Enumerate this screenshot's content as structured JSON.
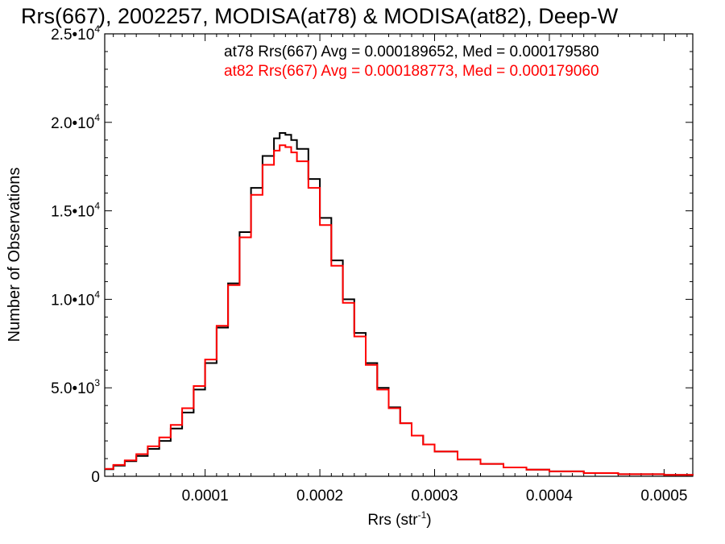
{
  "chart_data": {
    "type": "line",
    "title": "Rrs(667), 2002257, MODISA(at78) & MODISA(at82), Deep-W",
    "xlabel": "Rrs (str",
    "xlabel_sup": "-1",
    "xlabel_close": ")",
    "ylabel": "Number of Observations",
    "xlim": [
      1.25e-05,
      0.000525
    ],
    "ylim": [
      0,
      25000
    ],
    "grid": false,
    "x_ticks": [
      {
        "value": 0.0001,
        "label": "0.0001"
      },
      {
        "value": 0.0002,
        "label": "0.0002"
      },
      {
        "value": 0.0003,
        "label": "0.0003"
      },
      {
        "value": 0.0004,
        "label": "0.0004"
      },
      {
        "value": 0.0005,
        "label": "0.0005"
      }
    ],
    "y_ticks": [
      {
        "value": 0,
        "mant": "0",
        "exp": ""
      },
      {
        "value": 5000,
        "mant": "5.0•10",
        "exp": "3"
      },
      {
        "value": 10000,
        "mant": "1.0•10",
        "exp": "4"
      },
      {
        "value": 15000,
        "mant": "1.5•10",
        "exp": "4"
      },
      {
        "value": 20000,
        "mant": "2.0•10",
        "exp": "4"
      },
      {
        "value": 25000,
        "mant": "2.5•10",
        "exp": "4"
      }
    ],
    "annotations": [
      {
        "text": "at78 Rrs(667) Avg = 0.000189652, Med = 0.000179580",
        "color": "#000000"
      },
      {
        "text": "at82 Rrs(667) Avg = 0.000188773, Med = 0.000179060",
        "color": "#ff0000"
      }
    ],
    "series": [
      {
        "color": "#000000",
        "x": [
          1.25e-05,
          2e-05,
          3e-05,
          4e-05,
          5e-05,
          6e-05,
          7e-05,
          8e-05,
          9e-05,
          0.0001,
          0.00011,
          0.00012,
          0.00013,
          0.00014,
          0.00015,
          0.00016,
          0.000165,
          0.00017,
          0.000175,
          0.00018,
          0.00019,
          0.0002,
          0.00021,
          0.00022,
          0.00023,
          0.00024,
          0.00025,
          0.00026,
          0.00027,
          0.00028,
          0.00029,
          0.0003,
          0.00032,
          0.00034,
          0.00036,
          0.00038,
          0.0004,
          0.00043,
          0.00046,
          0.0005,
          0.000525
        ],
        "y": [
          400,
          600,
          850,
          1150,
          1550,
          2000,
          2700,
          3600,
          4900,
          6400,
          8400,
          10900,
          13800,
          16300,
          18100,
          19100,
          19400,
          19300,
          19000,
          18500,
          16800,
          14600,
          12200,
          10000,
          8100,
          6400,
          5000,
          3900,
          3000,
          2300,
          1800,
          1400,
          950,
          700,
          500,
          380,
          280,
          180,
          120,
          80,
          60
        ]
      },
      {
        "color": "#ff0000",
        "x": [
          1.25e-05,
          2e-05,
          3e-05,
          4e-05,
          5e-05,
          6e-05,
          7e-05,
          8e-05,
          9e-05,
          0.0001,
          0.00011,
          0.00012,
          0.00013,
          0.00014,
          0.00015,
          0.00016,
          0.000165,
          0.00017,
          0.000175,
          0.00018,
          0.00019,
          0.0002,
          0.00021,
          0.00022,
          0.00023,
          0.00024,
          0.00025,
          0.00026,
          0.00027,
          0.00028,
          0.00029,
          0.0003,
          0.00032,
          0.00034,
          0.00036,
          0.00038,
          0.0004,
          0.00043,
          0.00046,
          0.0005,
          0.000525
        ],
        "y": [
          420,
          640,
          900,
          1250,
          1700,
          2200,
          2900,
          3850,
          5100,
          6600,
          8500,
          10800,
          13500,
          15900,
          17600,
          18400,
          18700,
          18600,
          18300,
          17800,
          16300,
          14200,
          11900,
          9800,
          7900,
          6300,
          4900,
          3850,
          3000,
          2300,
          1800,
          1400,
          950,
          700,
          500,
          380,
          280,
          180,
          120,
          80,
          60
        ]
      }
    ]
  }
}
